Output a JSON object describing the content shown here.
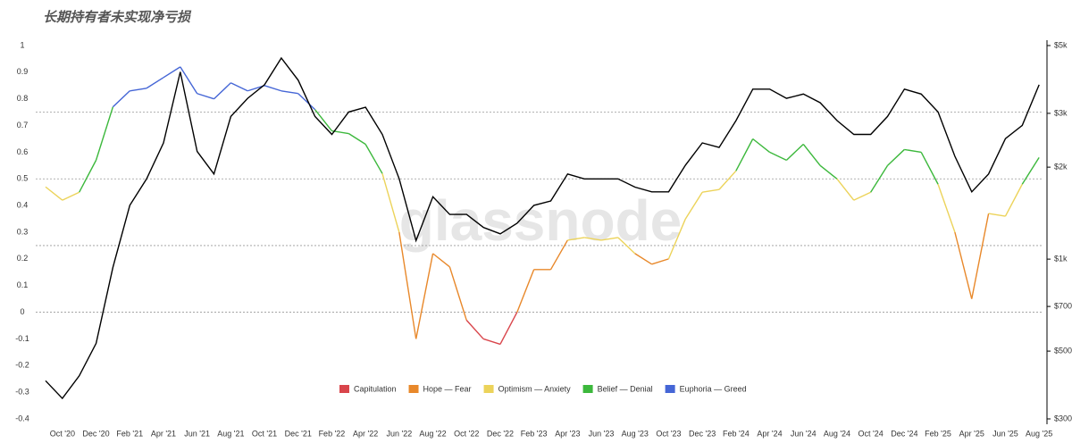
{
  "chart_data": {
    "type": "line",
    "title": "长期持有者未实现净亏损",
    "watermark": "glassnode",
    "x": [
      null,
      "Oct '20",
      null,
      "Dec '20",
      null,
      "Feb '21",
      null,
      "Apr '21",
      null,
      "Jun '21",
      null,
      "Aug '21",
      null,
      "Oct '21",
      null,
      "Dec '21",
      null,
      "Feb '22",
      null,
      "Apr '22",
      null,
      "Jun '22",
      null,
      "Aug '22",
      null,
      "Oct '22",
      null,
      "Dec '22",
      null,
      "Feb '23",
      null,
      "Apr '23",
      null,
      "Jun '23",
      null,
      "Aug '23",
      null,
      "Oct '23",
      null,
      "Dec '23",
      null,
      "Feb '24",
      null,
      "Apr '24",
      null,
      "Jun '24",
      null,
      "Aug '24",
      null,
      "Oct '24",
      null,
      "Dec '24",
      null,
      "Feb '25",
      null,
      "Apr '25",
      null,
      "Jun '25",
      null,
      "Aug '25"
    ],
    "ylim": [
      -0.4,
      1
    ],
    "yticks": [
      -0.4,
      -0.3,
      -0.2,
      -0.1,
      0,
      0.1,
      0.2,
      0.3,
      0.4,
      0.5,
      0.6,
      0.7,
      0.8,
      0.9,
      1
    ],
    "y2lim": [
      300,
      5000
    ],
    "y2scale": "log",
    "y2ticks": [
      {
        "value": 300,
        "label": "$300"
      },
      {
        "value": 500,
        "label": "$500"
      },
      {
        "value": 700,
        "label": "$700"
      },
      {
        "value": 1000,
        "label": "$1k"
      },
      {
        "value": 2000,
        "label": "$2k"
      },
      {
        "value": 3000,
        "label": "$3k"
      },
      {
        "value": 5000,
        "label": "$5k"
      }
    ],
    "zone_bounds": [
      0,
      0.25,
      0.5,
      0.75
    ],
    "zones": [
      {
        "name": "Capitulation",
        "color": "#d9454b"
      },
      {
        "name": "Hope — Fear",
        "color": "#e8882a"
      },
      {
        "name": "Optimism — Anxiety",
        "color": "#ecd35a"
      },
      {
        "name": "Belief — Denial",
        "color": "#3cb83c"
      },
      {
        "name": "Euphoria — Greed",
        "color": "#4566d6"
      }
    ],
    "legend": "bottom",
    "series": [
      {
        "values": [
          0.47,
          0.42,
          0.45,
          0.57,
          0.77,
          0.83,
          0.84,
          0.88,
          0.92,
          0.82,
          0.8,
          0.86,
          0.83,
          0.85,
          0.83,
          0.82,
          0.76,
          0.68,
          0.67,
          0.63,
          0.52,
          0.3,
          -0.1,
          0.22,
          0.17,
          -0.03,
          -0.1,
          -0.12,
          0.0,
          0.16,
          0.16,
          0.27,
          0.28,
          0.27,
          0.28,
          0.22,
          0.18,
          0.2,
          0.35,
          0.45,
          0.46,
          0.53,
          0.65,
          0.6,
          0.57,
          0.63,
          0.55,
          0.5,
          0.42,
          0.45,
          0.55,
          0.61,
          0.6,
          0.48,
          0.3,
          0.05,
          0.37,
          0.36,
          0.48,
          0.58
        ]
      },
      {
        "color": "#000000",
        "axis": "y2",
        "values": [
          400,
          350,
          415,
          530,
          940,
          1500,
          1830,
          2400,
          4100,
          2250,
          1900,
          2930,
          3360,
          3720,
          4550,
          3850,
          2930,
          2560,
          3030,
          3140,
          2560,
          1830,
          1150,
          1600,
          1400,
          1400,
          1270,
          1210,
          1310,
          1500,
          1550,
          1900,
          1830,
          1830,
          1830,
          1720,
          1660,
          1660,
          2030,
          2400,
          2320,
          2840,
          3600,
          3600,
          3360,
          3470,
          3250,
          2840,
          2560,
          2560,
          2930,
          3600,
          3470,
          3030,
          2170,
          1660,
          1900,
          2480,
          2740,
          3720
        ]
      }
    ]
  }
}
